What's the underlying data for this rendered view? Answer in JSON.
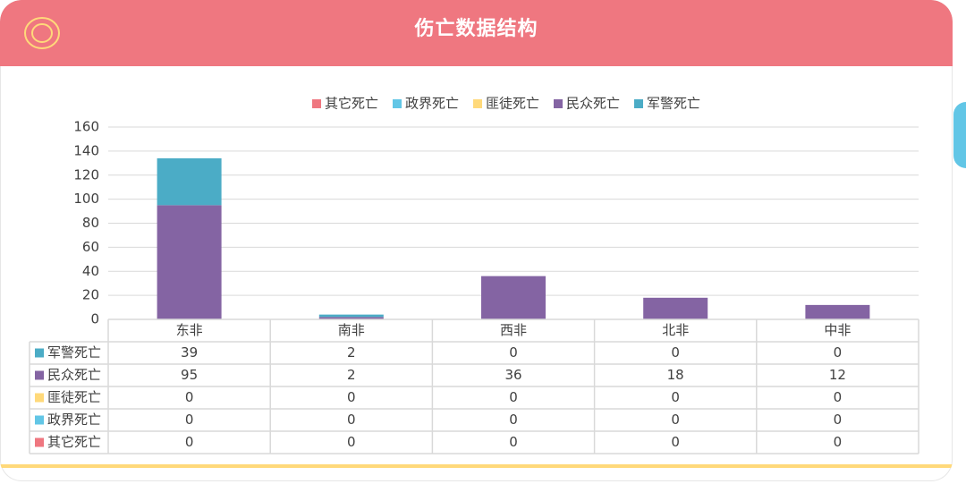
{
  "header": {
    "title": "伤亡数据结构",
    "icon": "target-rings-icon"
  },
  "colors": {
    "header_bg": "#ef7780",
    "side_tab": "#62c6e6",
    "bottom_line": "#ffd97a"
  },
  "chart_data": {
    "type": "bar",
    "stacked": true,
    "categories": [
      "东非",
      "南非",
      "西非",
      "北非",
      "中非"
    ],
    "series": [
      {
        "name": "其它死亡",
        "color": "#ef7780",
        "values": [
          0,
          0,
          0,
          0,
          0
        ]
      },
      {
        "name": "政界死亡",
        "color": "#62c6e6",
        "values": [
          0,
          0,
          0,
          0,
          0
        ]
      },
      {
        "name": "匪徒死亡",
        "color": "#ffd97a",
        "values": [
          0,
          0,
          0,
          0,
          0
        ]
      },
      {
        "name": "民众死亡",
        "color": "#8464a3",
        "values": [
          95,
          2,
          36,
          18,
          12
        ]
      },
      {
        "name": "军警死亡",
        "color": "#4bacc6",
        "values": [
          39,
          2,
          0,
          0,
          0
        ]
      }
    ],
    "table_order": [
      "军警死亡",
      "民众死亡",
      "匪徒死亡",
      "政界死亡",
      "其它死亡"
    ],
    "ylim": [
      0,
      160
    ],
    "yticks": [
      0,
      20,
      40,
      60,
      80,
      100,
      120,
      140,
      160
    ],
    "grid": true,
    "legend_position": "top",
    "data_table": true
  }
}
